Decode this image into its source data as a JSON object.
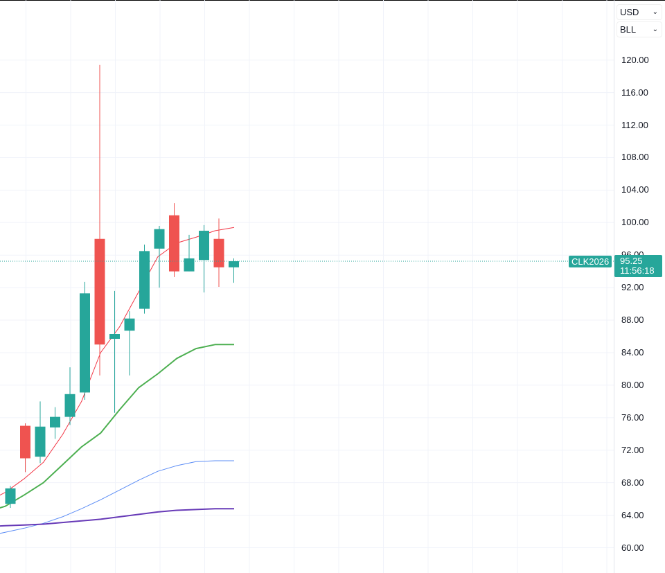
{
  "toolbar": {
    "currency": "USD",
    "unit": "BLL"
  },
  "last_price": {
    "symbol": "CLK2026",
    "price": "95.25",
    "countdown": "11:56:18"
  },
  "colors": {
    "up": "#26a69a",
    "down": "#ef5350",
    "ma_fast": "#f23645",
    "ma_mid": "#4caf50",
    "ma_slow": "#5b8cf5",
    "ma_long": "#673ab7",
    "grid": "#f0f3fa",
    "price_line": "#26a69a"
  },
  "chart_data": {
    "type": "candlestick",
    "y_axis": {
      "range": [
        58.5,
        125.5
      ],
      "ticks": [
        60,
        64,
        68,
        72,
        76,
        80,
        84,
        88,
        92,
        96,
        100,
        104,
        108,
        112,
        116,
        120
      ],
      "tick_labels": [
        "60.00",
        "64.00",
        "68.00",
        "72.00",
        "76.00",
        "80.00",
        "84.00",
        "88.00",
        "92.00",
        "96.00",
        "100.00",
        "104.00",
        "108.00",
        "112.00",
        "116.00",
        "120.00"
      ]
    },
    "grid": true,
    "candles": [
      {
        "open": 65.4,
        "high": 67.6,
        "low": 64.9,
        "close": 67.3
      },
      {
        "open": 75.0,
        "high": 75.3,
        "low": 69.3,
        "close": 71.0
      },
      {
        "open": 71.2,
        "high": 78.0,
        "low": 70.4,
        "close": 74.9
      },
      {
        "open": 74.8,
        "high": 77.3,
        "low": 73.4,
        "close": 76.1
      },
      {
        "open": 76.1,
        "high": 82.2,
        "low": 75.1,
        "close": 78.9
      },
      {
        "open": 79.1,
        "high": 92.7,
        "low": 78.2,
        "close": 91.3
      },
      {
        "open": 98.0,
        "high": 119.4,
        "low": 81.2,
        "close": 85.0
      },
      {
        "open": 85.7,
        "high": 91.6,
        "low": 76.6,
        "close": 86.3
      },
      {
        "open": 86.7,
        "high": 89.1,
        "low": 81.2,
        "close": 88.2
      },
      {
        "open": 89.4,
        "high": 97.3,
        "low": 88.8,
        "close": 96.5
      },
      {
        "open": 96.8,
        "high": 99.6,
        "low": 92.0,
        "close": 99.2
      },
      {
        "open": 100.9,
        "high": 102.4,
        "low": 93.3,
        "close": 94.0
      },
      {
        "open": 94.0,
        "high": 98.5,
        "low": 94.0,
        "close": 95.6
      },
      {
        "open": 95.4,
        "high": 99.7,
        "low": 91.4,
        "close": 99.0
      },
      {
        "open": 98.0,
        "high": 100.5,
        "low": 92.1,
        "close": 94.5
      },
      {
        "open": 94.5,
        "high": 95.6,
        "low": 92.6,
        "close": 95.25
      }
    ],
    "moving_averages": [
      {
        "color_key": "ma_fast",
        "width": 1,
        "values": [
          65.6,
          66.8,
          68.5,
          70.5,
          73.9,
          78.0,
          84.0,
          87.2,
          91.5,
          95.8,
          97.5,
          98.2,
          99.0,
          99.4
        ]
      },
      {
        "color_key": "ma_mid",
        "width": 2,
        "values": [
          64.4,
          65.1,
          66.5,
          68.0,
          70.2,
          72.4,
          74.1,
          77.0,
          79.7,
          81.4,
          83.3,
          84.5,
          85.0,
          85.0
        ]
      },
      {
        "color_key": "ma_slow",
        "width": 1,
        "values": [
          61.4,
          61.9,
          62.4,
          63.0,
          63.8,
          64.8,
          65.9,
          67.1,
          68.3,
          69.4,
          70.1,
          70.6,
          70.7,
          70.7
        ]
      },
      {
        "color_key": "ma_long",
        "width": 2,
        "values": [
          62.6,
          62.7,
          62.8,
          62.9,
          63.1,
          63.3,
          63.5,
          63.8,
          64.1,
          64.4,
          64.6,
          64.7,
          64.8,
          64.8
        ]
      }
    ]
  }
}
